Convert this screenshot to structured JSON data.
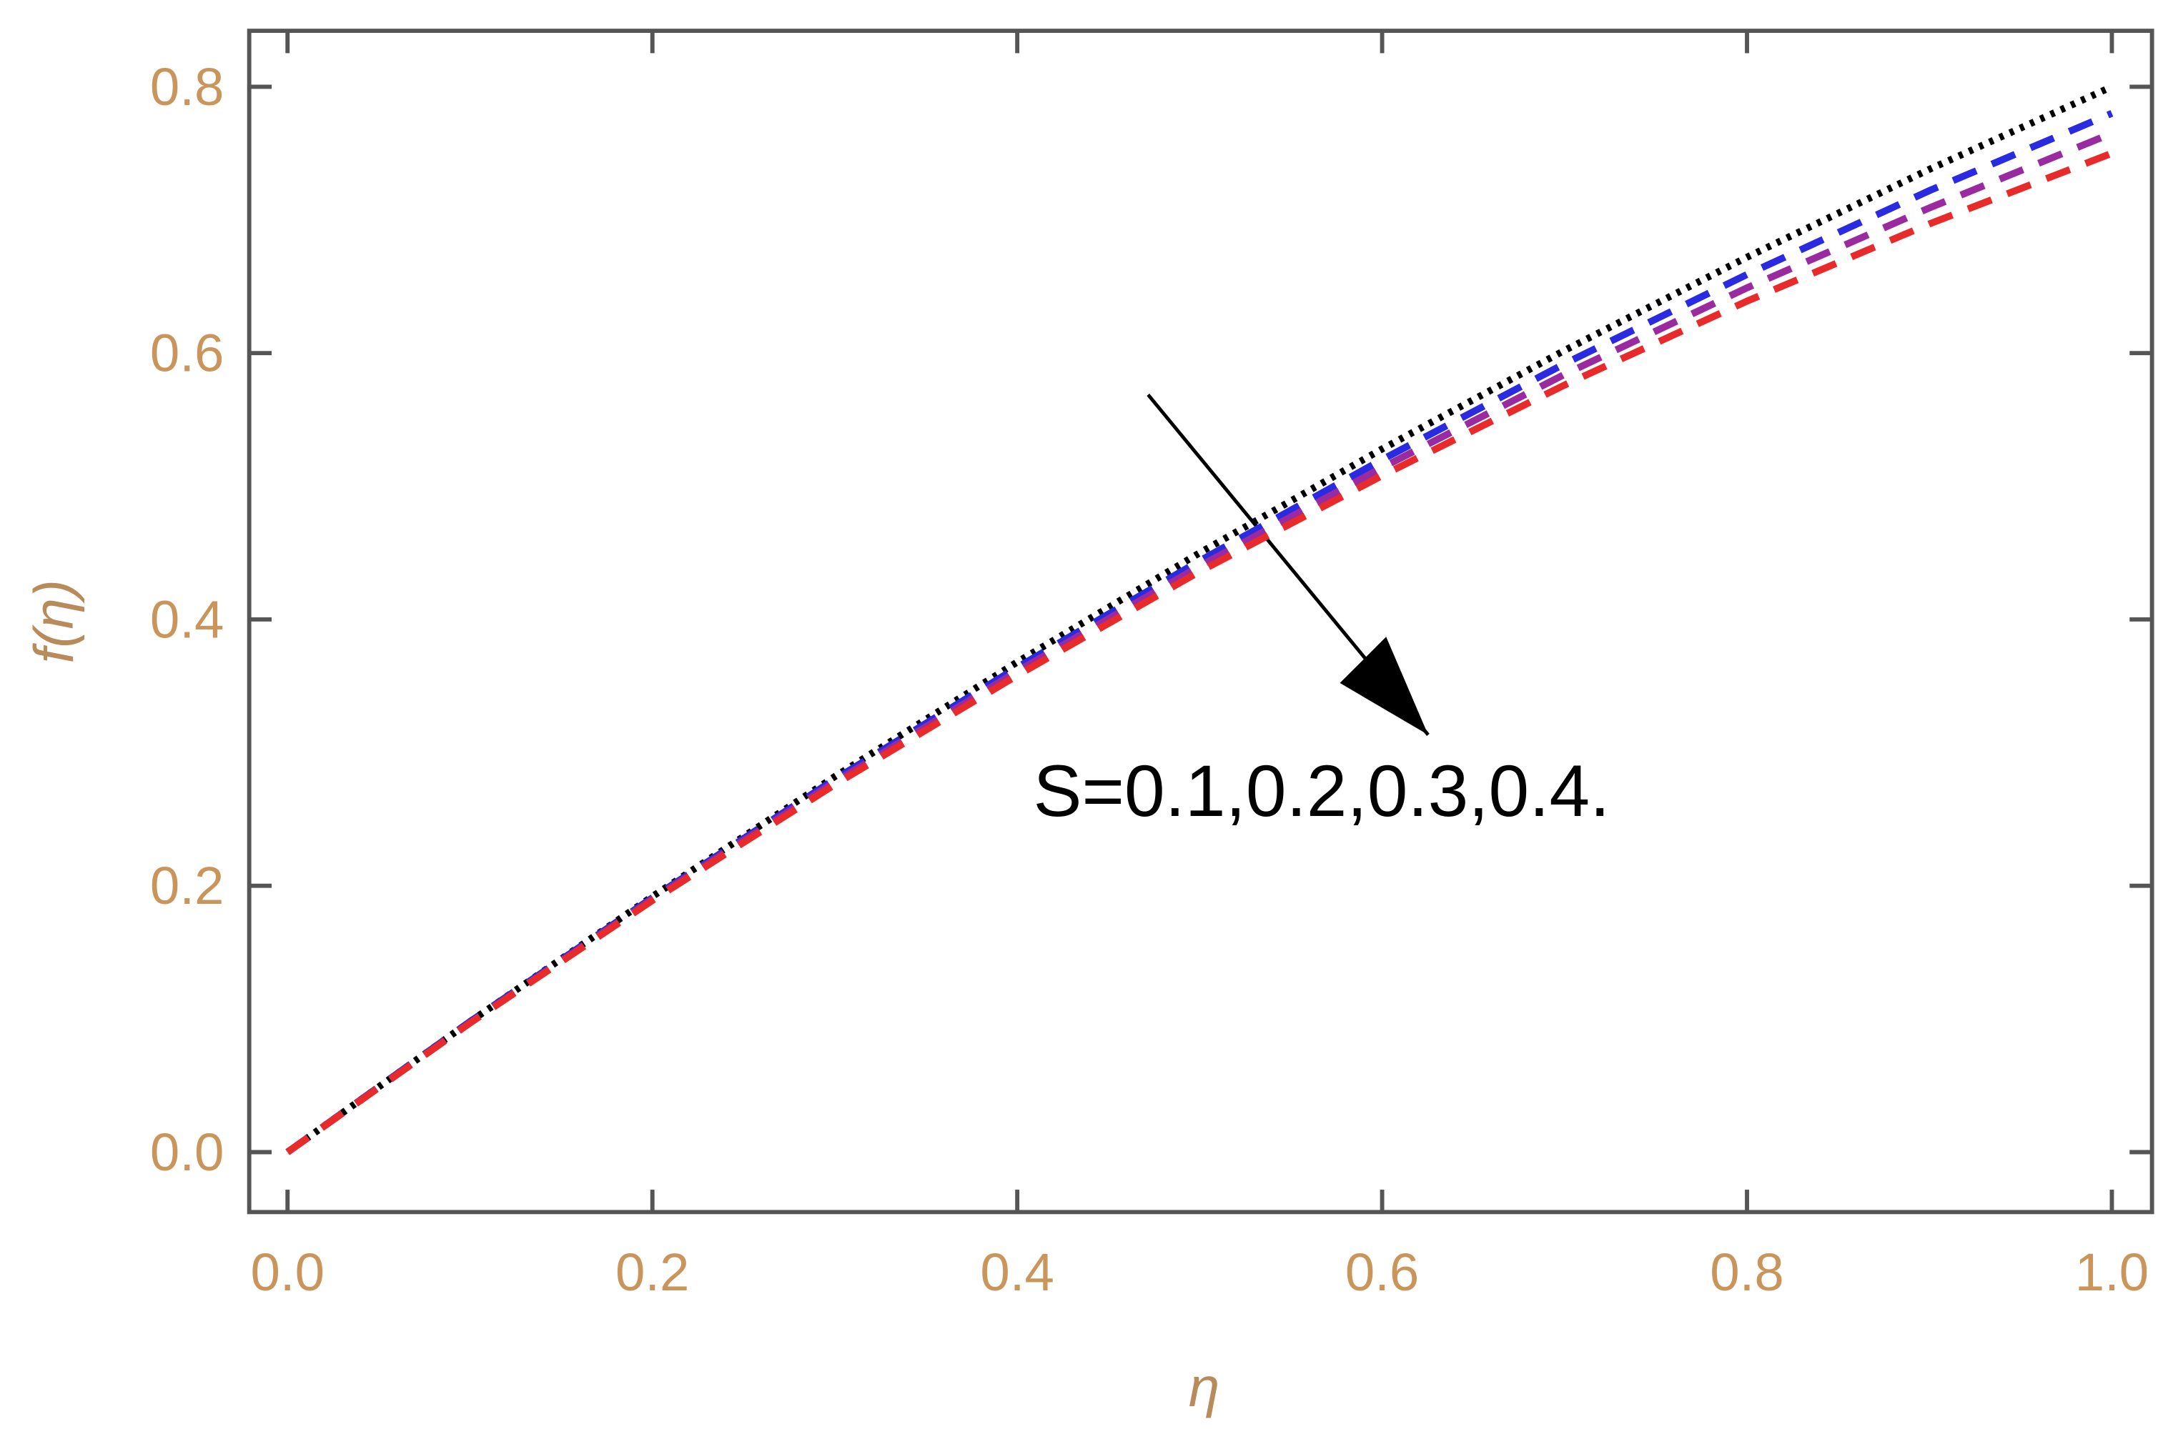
{
  "chart_data": {
    "type": "line",
    "xlabel": "η",
    "ylabel": "f(η)",
    "annotation": "S=0.1,0.2,0.3,0.4.",
    "x": [
      0,
      0.1,
      0.2,
      0.3,
      0.4,
      0.5,
      0.6,
      0.7,
      0.8,
      0.9,
      1.0
    ],
    "series": [
      {
        "color": "#000000",
        "linestyle": "dotted",
        "values": [
          0,
          0.098,
          0.192,
          0.282,
          0.368,
          0.45,
          0.528,
          0.602,
          0.672,
          0.738,
          0.8
        ]
      },
      {
        "color": "#2a2ae0",
        "linestyle": "dashed",
        "values": [
          0,
          0.098,
          0.191,
          0.28,
          0.364,
          0.444,
          0.52,
          0.592,
          0.659,
          0.722,
          0.78
        ]
      },
      {
        "color": "#9a2aa0",
        "linestyle": "dashed",
        "values": [
          0,
          0.097,
          0.19,
          0.278,
          0.361,
          0.44,
          0.514,
          0.584,
          0.649,
          0.709,
          0.765
        ]
      },
      {
        "color": "#e82a2a",
        "linestyle": "dashed",
        "values": [
          0,
          0.097,
          0.189,
          0.276,
          0.358,
          0.436,
          0.508,
          0.576,
          0.639,
          0.697,
          0.75
        ]
      }
    ],
    "xlim": [
      -0.021,
      1.022
    ],
    "ylim": [
      -0.045,
      0.842
    ],
    "xticks": [
      {
        "value": 0,
        "label": "0.0"
      },
      0.2,
      0.4,
      0.6,
      0.8,
      {
        "value": 1,
        "label": "1.0"
      }
    ],
    "yticks": [
      {
        "value": 0,
        "label": "0.0"
      },
      0.2,
      0.4,
      0.6,
      0.8
    ]
  }
}
